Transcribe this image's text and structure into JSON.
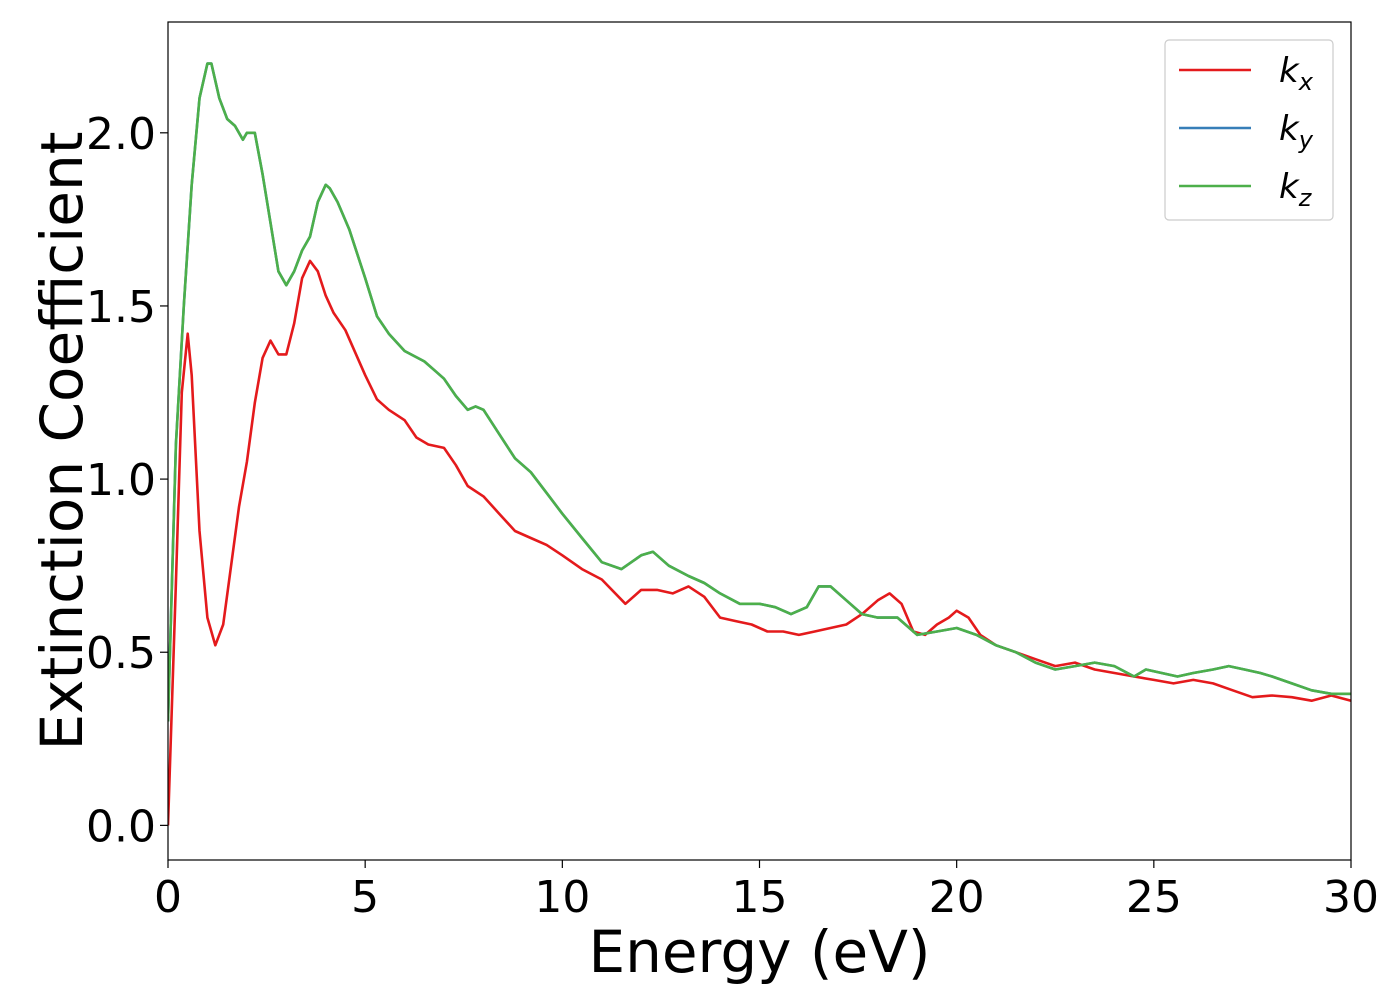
{
  "chart_data": {
    "type": "line",
    "title": "",
    "xlabel": "Energy (eV)",
    "ylabel": "Extinction Coefficient",
    "xlim": [
      0,
      30
    ],
    "ylim": [
      -0.1,
      2.32
    ],
    "xticks": [
      0,
      5,
      10,
      15,
      20,
      25,
      30
    ],
    "xtick_labels": [
      "0",
      "5",
      "10",
      "15",
      "20",
      "25",
      "30"
    ],
    "yticks": [
      0.0,
      0.5,
      1.0,
      1.5,
      2.0
    ],
    "ytick_labels": [
      "0.0",
      "0.5",
      "1.0",
      "1.5",
      "2.0"
    ],
    "grid": false,
    "legend_position": "top-right",
    "series": [
      {
        "name": "k",
        "subscript": "x",
        "color": "#e41a1c",
        "x": [
          0,
          0.2,
          0.35,
          0.5,
          0.6,
          0.8,
          1.0,
          1.2,
          1.4,
          1.6,
          1.8,
          2.0,
          2.2,
          2.4,
          2.6,
          2.8,
          3.0,
          3.2,
          3.4,
          3.6,
          3.8,
          4.0,
          4.2,
          4.5,
          5.0,
          5.3,
          5.6,
          6.0,
          6.3,
          6.6,
          7.0,
          7.3,
          7.6,
          8.0,
          8.4,
          8.8,
          9.2,
          9.6,
          10.0,
          10.5,
          11.0,
          11.6,
          12.0,
          12.4,
          12.8,
          13.2,
          13.6,
          14.0,
          14.4,
          14.8,
          15.2,
          15.6,
          16.0,
          16.4,
          16.8,
          17.2,
          17.6,
          18.0,
          18.3,
          18.6,
          18.9,
          19.2,
          19.5,
          19.8,
          20.0,
          20.3,
          20.6,
          21.0,
          21.5,
          22.0,
          22.5,
          23.0,
          23.5,
          24.0,
          24.5,
          25.0,
          25.5,
          26.0,
          26.5,
          27.0,
          27.5,
          28.0,
          28.5,
          29.0,
          29.5,
          30.0
        ],
        "values": [
          0.0,
          0.7,
          1.25,
          1.42,
          1.3,
          0.85,
          0.6,
          0.52,
          0.58,
          0.75,
          0.92,
          1.05,
          1.22,
          1.35,
          1.4,
          1.36,
          1.36,
          1.45,
          1.58,
          1.63,
          1.6,
          1.53,
          1.48,
          1.43,
          1.3,
          1.23,
          1.2,
          1.17,
          1.12,
          1.1,
          1.09,
          1.04,
          0.98,
          0.95,
          0.9,
          0.85,
          0.83,
          0.81,
          0.78,
          0.74,
          0.71,
          0.64,
          0.68,
          0.68,
          0.67,
          0.69,
          0.66,
          0.6,
          0.59,
          0.58,
          0.56,
          0.56,
          0.55,
          0.56,
          0.57,
          0.58,
          0.61,
          0.65,
          0.67,
          0.64,
          0.56,
          0.55,
          0.58,
          0.6,
          0.62,
          0.6,
          0.55,
          0.52,
          0.5,
          0.48,
          0.46,
          0.47,
          0.45,
          0.44,
          0.43,
          0.42,
          0.41,
          0.42,
          0.41,
          0.39,
          0.37,
          0.375,
          0.37,
          0.36,
          0.375,
          0.36
        ]
      },
      {
        "name": "k",
        "subscript": "y",
        "color": "#377eb8",
        "x": [
          0,
          0.2,
          0.4,
          0.6,
          0.8,
          1.0,
          1.1,
          1.3,
          1.5,
          1.7,
          1.9,
          2.0,
          2.2,
          2.4,
          2.6,
          2.8,
          3.0,
          3.2,
          3.4,
          3.6,
          3.8,
          4.0,
          4.1,
          4.3,
          4.6,
          5.0,
          5.3,
          5.6,
          6.0,
          6.5,
          6.8,
          7.0,
          7.3,
          7.6,
          7.8,
          8.0,
          8.4,
          8.8,
          9.2,
          9.6,
          10.0,
          10.5,
          11.0,
          11.5,
          12.0,
          12.3,
          12.7,
          13.2,
          13.6,
          14.0,
          14.5,
          15.0,
          15.4,
          15.8,
          16.2,
          16.5,
          16.8,
          17.2,
          17.6,
          18.0,
          18.5,
          19.0,
          19.5,
          20.0,
          20.5,
          21.0,
          21.5,
          22.0,
          22.5,
          23.0,
          23.5,
          24.0,
          24.5,
          24.8,
          25.2,
          25.6,
          26.0,
          26.5,
          26.9,
          27.3,
          27.7,
          28.0,
          28.5,
          29.0,
          29.5,
          30.0
        ],
        "values": [
          0.3,
          1.1,
          1.5,
          1.85,
          2.1,
          2.2,
          2.2,
          2.1,
          2.04,
          2.02,
          1.98,
          2.0,
          2.0,
          1.88,
          1.74,
          1.6,
          1.56,
          1.6,
          1.66,
          1.7,
          1.8,
          1.85,
          1.84,
          1.8,
          1.72,
          1.58,
          1.47,
          1.42,
          1.37,
          1.34,
          1.31,
          1.29,
          1.24,
          1.2,
          1.21,
          1.2,
          1.13,
          1.06,
          1.02,
          0.96,
          0.9,
          0.83,
          0.76,
          0.74,
          0.78,
          0.79,
          0.75,
          0.72,
          0.7,
          0.67,
          0.64,
          0.64,
          0.63,
          0.61,
          0.63,
          0.69,
          0.69,
          0.65,
          0.61,
          0.6,
          0.6,
          0.55,
          0.56,
          0.57,
          0.55,
          0.52,
          0.5,
          0.47,
          0.45,
          0.46,
          0.47,
          0.46,
          0.43,
          0.45,
          0.44,
          0.43,
          0.44,
          0.45,
          0.46,
          0.45,
          0.44,
          0.43,
          0.41,
          0.39,
          0.38,
          0.38
        ]
      },
      {
        "name": "k",
        "subscript": "z",
        "color": "#4daf4a",
        "x": [
          0,
          0.2,
          0.4,
          0.6,
          0.8,
          1.0,
          1.1,
          1.3,
          1.5,
          1.7,
          1.9,
          2.0,
          2.2,
          2.4,
          2.6,
          2.8,
          3.0,
          3.2,
          3.4,
          3.6,
          3.8,
          4.0,
          4.1,
          4.3,
          4.6,
          5.0,
          5.3,
          5.6,
          6.0,
          6.5,
          6.8,
          7.0,
          7.3,
          7.6,
          7.8,
          8.0,
          8.4,
          8.8,
          9.2,
          9.6,
          10.0,
          10.5,
          11.0,
          11.5,
          12.0,
          12.3,
          12.7,
          13.2,
          13.6,
          14.0,
          14.5,
          15.0,
          15.4,
          15.8,
          16.2,
          16.5,
          16.8,
          17.2,
          17.6,
          18.0,
          18.5,
          19.0,
          19.5,
          20.0,
          20.5,
          21.0,
          21.5,
          22.0,
          22.5,
          23.0,
          23.5,
          24.0,
          24.5,
          24.8,
          25.2,
          25.6,
          26.0,
          26.5,
          26.9,
          27.3,
          27.7,
          28.0,
          28.5,
          29.0,
          29.5,
          30.0
        ],
        "values": [
          0.3,
          1.1,
          1.5,
          1.85,
          2.1,
          2.2,
          2.2,
          2.1,
          2.04,
          2.02,
          1.98,
          2.0,
          2.0,
          1.88,
          1.74,
          1.6,
          1.56,
          1.6,
          1.66,
          1.7,
          1.8,
          1.85,
          1.84,
          1.8,
          1.72,
          1.58,
          1.47,
          1.42,
          1.37,
          1.34,
          1.31,
          1.29,
          1.24,
          1.2,
          1.21,
          1.2,
          1.13,
          1.06,
          1.02,
          0.96,
          0.9,
          0.83,
          0.76,
          0.74,
          0.78,
          0.79,
          0.75,
          0.72,
          0.7,
          0.67,
          0.64,
          0.64,
          0.63,
          0.61,
          0.63,
          0.69,
          0.69,
          0.65,
          0.61,
          0.6,
          0.6,
          0.55,
          0.56,
          0.57,
          0.55,
          0.52,
          0.5,
          0.47,
          0.45,
          0.46,
          0.47,
          0.46,
          0.43,
          0.45,
          0.44,
          0.43,
          0.44,
          0.45,
          0.46,
          0.45,
          0.44,
          0.43,
          0.41,
          0.39,
          0.38,
          0.38
        ]
      }
    ]
  }
}
